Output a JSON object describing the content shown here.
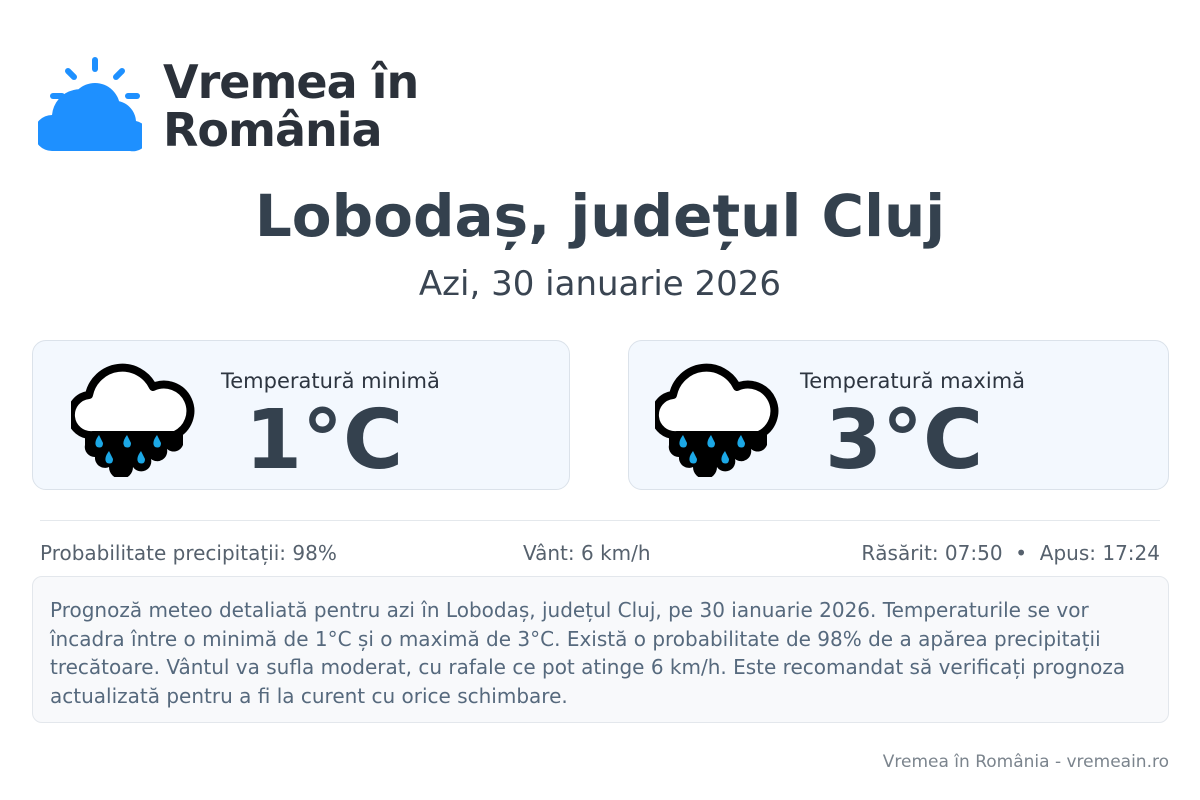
{
  "logo": {
    "line1": "Vremea în",
    "line2": "România",
    "color": "#1e90ff"
  },
  "title": "Lobodaș, județul Cluj",
  "date": "Azi, 30 ianuarie 2026",
  "cards": [
    {
      "label": "Temperatură minimă",
      "value": "1°C",
      "icon": "rain-cloud-icon"
    },
    {
      "label": "Temperatură maximă",
      "value": "3°C",
      "icon": "rain-cloud-icon"
    }
  ],
  "stats": {
    "precip": "Probabilitate precipitații: 98%",
    "wind": "Vânt: 6 km/h",
    "sun": "Răsărit: 07:50  •  Apus: 17:24"
  },
  "description": "Prognoză meteo detaliată pentru azi în Lobodaș, județul Cluj, pe 30 ianuarie 2026. Temperaturile se vor încadra între o minimă de 1°C și o maximă de 3°C. Există o probabilitate de 98% de a apărea precipitații trecătoare. Vântul va sufla moderat, cu rafale ce pot atinge 6 km/h. Este recomandat să verificați prognoza actualizată pentru a fi la curent cu orice schimbare.",
  "footer": "Vremea în România - vremeain.ro"
}
